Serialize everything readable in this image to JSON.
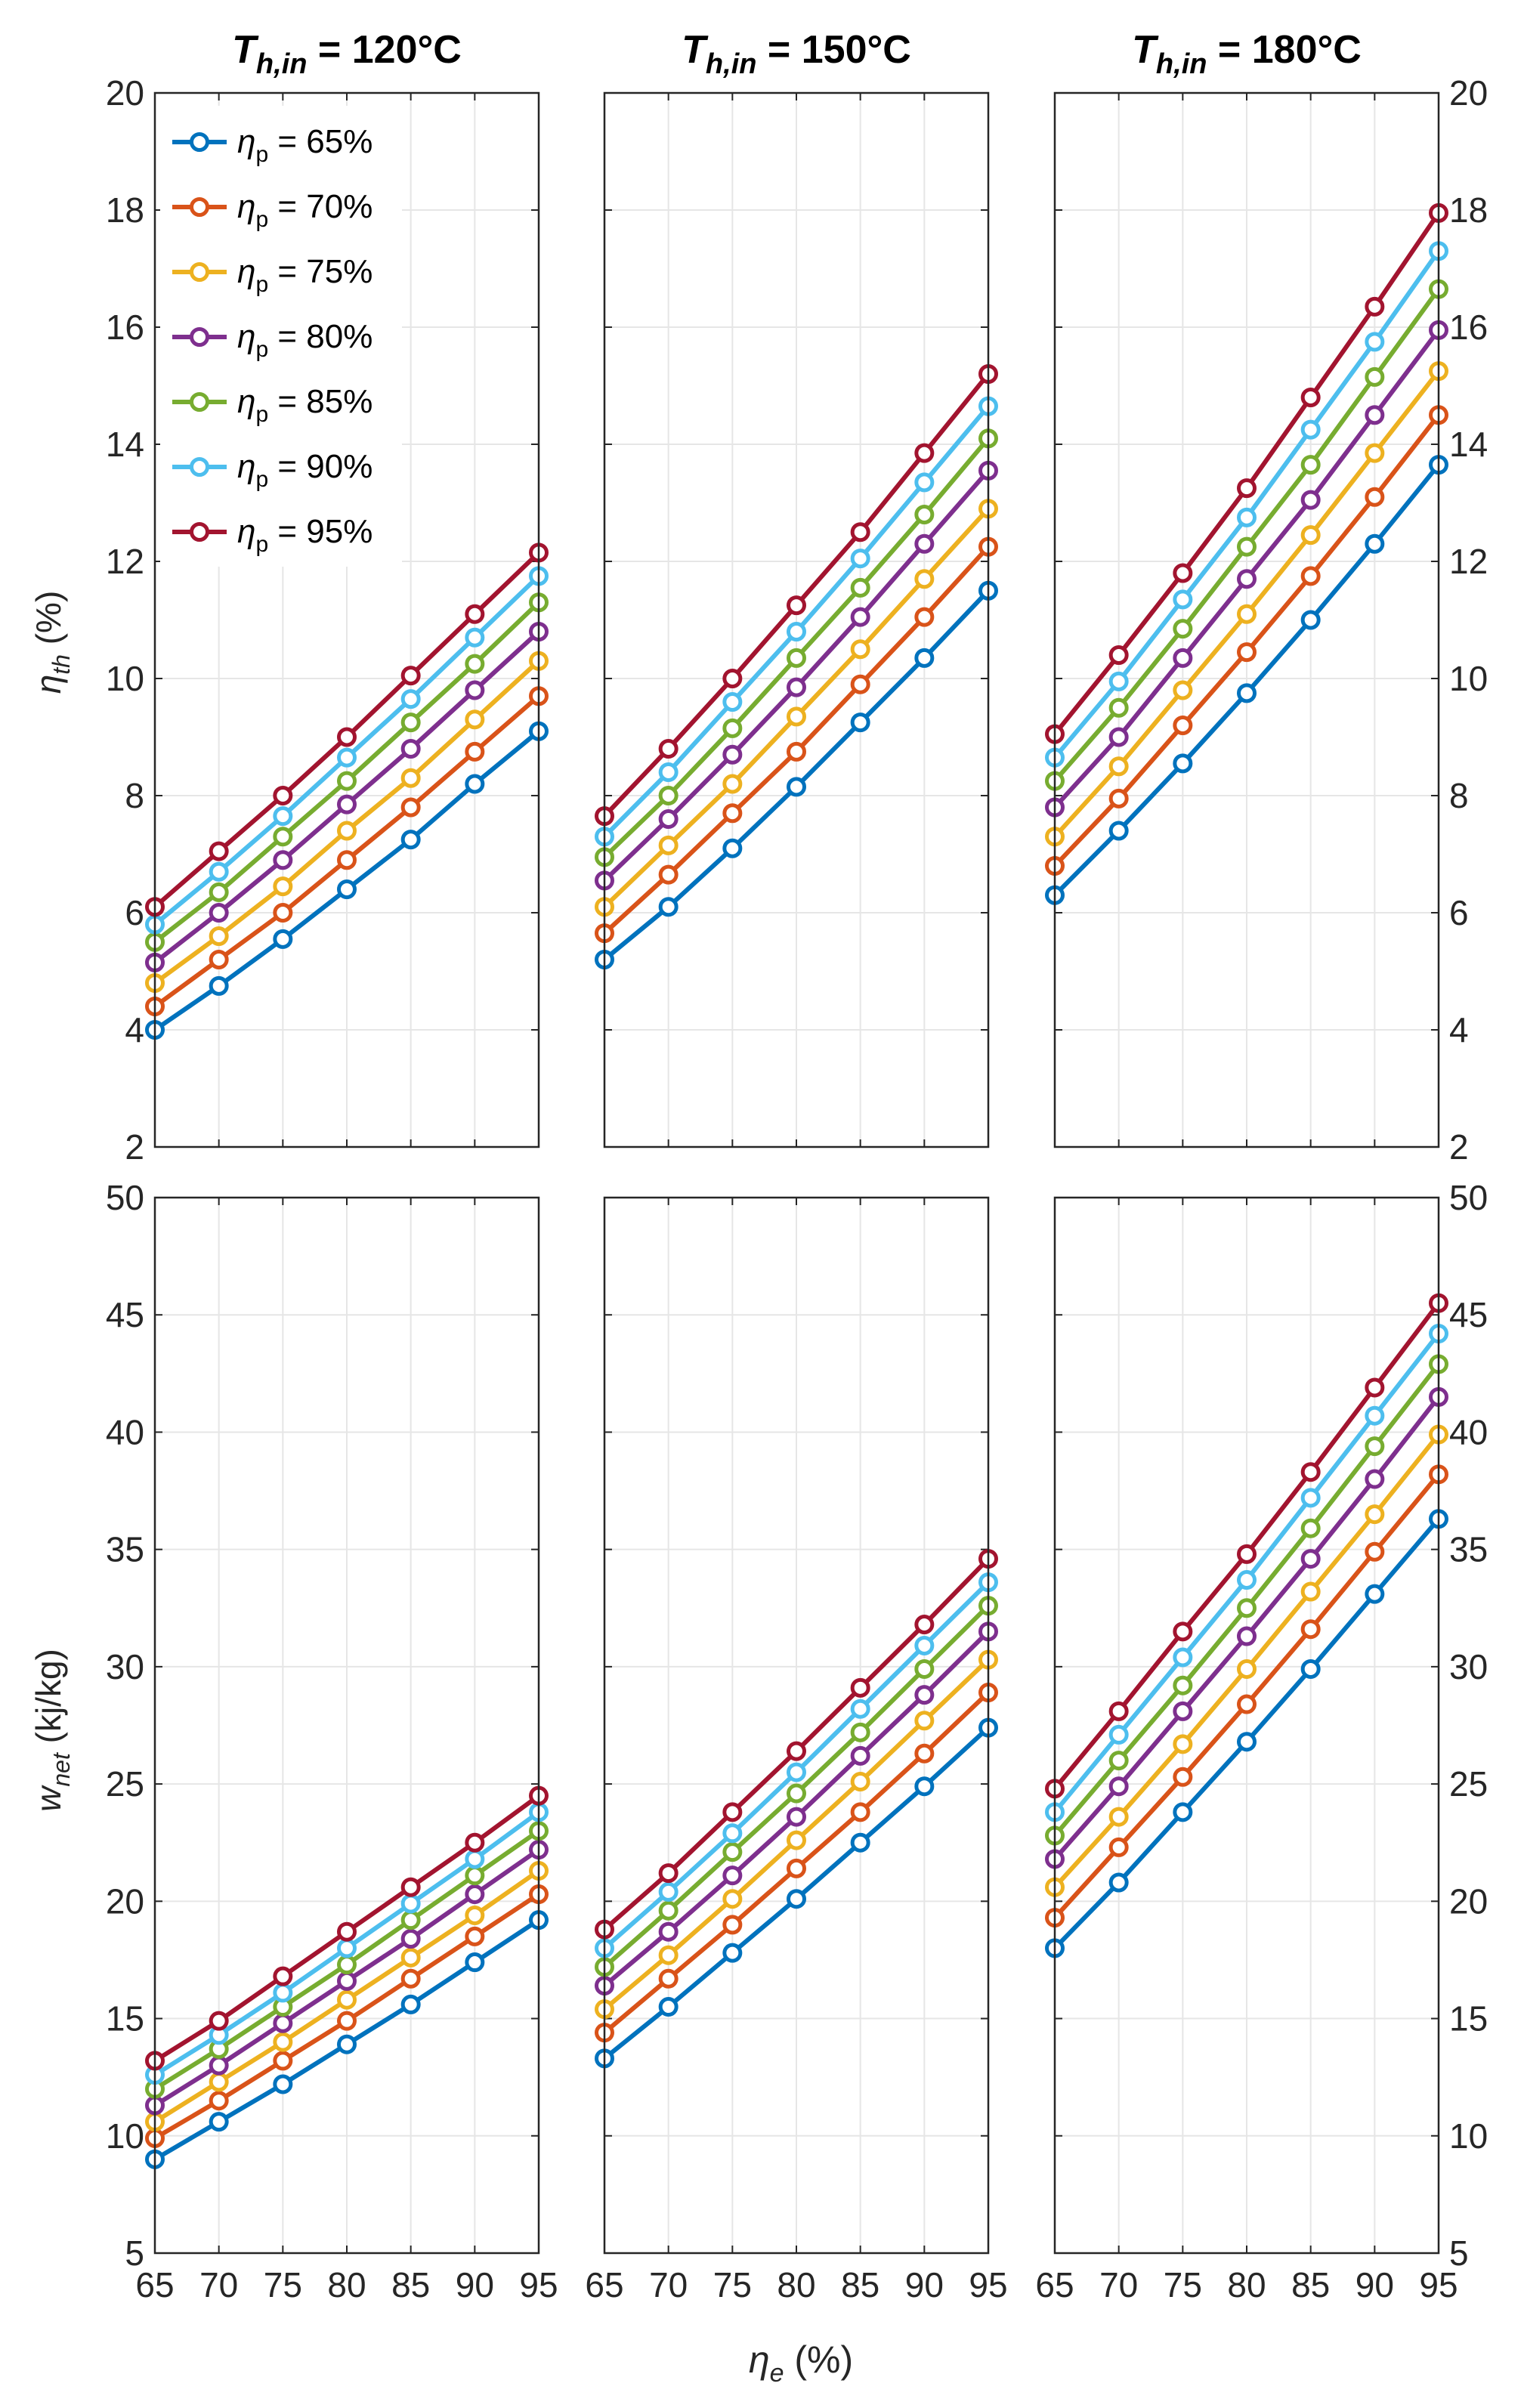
{
  "figure": {
    "xlabel_sym": "η",
    "xlabel_sub": "e",
    "xlabel_unit": " (%)",
    "ylabel_top_sym": "η",
    "ylabel_top_sub": "th",
    "ylabel_top_unit": " (%)",
    "ylabel_bottom_sym": "w",
    "ylabel_bottom_sub": "net",
    "ylabel_bottom_unit": " (kj/kg)"
  },
  "legend": {
    "prefix": "η",
    "sub": "p",
    "entries": [
      " = 65%",
      " = 70%",
      " = 75%",
      " = 80%",
      " = 85%",
      " = 90%",
      " = 95%"
    ]
  },
  "colors": [
    "#0072BD",
    "#D95319",
    "#EDB120",
    "#7E2F8E",
    "#77AC30",
    "#4DBEEE",
    "#A2142F"
  ],
  "chart_data": [
    {
      "type": "line",
      "panel": "top-left",
      "title_main": "T",
      "title_sub": "h,in",
      "title_rest": " = 120°C",
      "x": [
        65,
        70,
        75,
        80,
        85,
        90,
        95
      ],
      "ylim": [
        2,
        20
      ],
      "yticks": [
        2,
        4,
        6,
        8,
        10,
        12,
        14,
        16,
        18,
        20
      ],
      "xticks": [
        65,
        70,
        75,
        80,
        85,
        90,
        95
      ],
      "grid": true,
      "legend_position": "top-left",
      "series": [
        {
          "name": "ηp = 65%",
          "values": [
            4.0,
            4.75,
            5.55,
            6.4,
            7.25,
            8.2,
            9.1
          ]
        },
        {
          "name": "ηp = 70%",
          "values": [
            4.4,
            5.2,
            6.0,
            6.9,
            7.8,
            8.75,
            9.7
          ]
        },
        {
          "name": "ηp = 75%",
          "values": [
            4.8,
            5.6,
            6.45,
            7.4,
            8.3,
            9.3,
            10.3
          ]
        },
        {
          "name": "ηp = 80%",
          "values": [
            5.15,
            6.0,
            6.9,
            7.85,
            8.8,
            9.8,
            10.8
          ]
        },
        {
          "name": "ηp = 85%",
          "values": [
            5.5,
            6.35,
            7.3,
            8.25,
            9.25,
            10.25,
            11.3
          ]
        },
        {
          "name": "ηp = 90%",
          "values": [
            5.8,
            6.7,
            7.65,
            8.65,
            9.65,
            10.7,
            11.75
          ]
        },
        {
          "name": "ηp = 95%",
          "values": [
            6.1,
            7.05,
            8.0,
            9.0,
            10.05,
            11.1,
            12.15
          ]
        }
      ]
    },
    {
      "type": "line",
      "panel": "top-middle",
      "title_main": "T",
      "title_sub": "h,in",
      "title_rest": " = 150°C",
      "x": [
        65,
        70,
        75,
        80,
        85,
        90,
        95
      ],
      "ylim": [
        2,
        20
      ],
      "yticks": [
        2,
        4,
        6,
        8,
        10,
        12,
        14,
        16,
        18,
        20
      ],
      "xticks": [
        65,
        70,
        75,
        80,
        85,
        90,
        95
      ],
      "grid": true,
      "series": [
        {
          "name": "ηp = 65%",
          "values": [
            5.2,
            6.1,
            7.1,
            8.15,
            9.25,
            10.35,
            11.5
          ]
        },
        {
          "name": "ηp = 70%",
          "values": [
            5.65,
            6.65,
            7.7,
            8.75,
            9.9,
            11.05,
            12.25
          ]
        },
        {
          "name": "ηp = 75%",
          "values": [
            6.1,
            7.15,
            8.2,
            9.35,
            10.5,
            11.7,
            12.9
          ]
        },
        {
          "name": "ηp = 80%",
          "values": [
            6.55,
            7.6,
            8.7,
            9.85,
            11.05,
            12.3,
            13.55
          ]
        },
        {
          "name": "ηp = 85%",
          "values": [
            6.95,
            8.0,
            9.15,
            10.35,
            11.55,
            12.8,
            14.1
          ]
        },
        {
          "name": "ηp = 90%",
          "values": [
            7.3,
            8.4,
            9.6,
            10.8,
            12.05,
            13.35,
            14.65
          ]
        },
        {
          "name": "ηp = 95%",
          "values": [
            7.65,
            8.8,
            10.0,
            11.25,
            12.5,
            13.85,
            15.2
          ]
        }
      ]
    },
    {
      "type": "line",
      "panel": "top-right",
      "title_main": "T",
      "title_sub": "h,in",
      "title_rest": " = 180°C",
      "x": [
        65,
        70,
        75,
        80,
        85,
        90,
        95
      ],
      "ylim": [
        2,
        20
      ],
      "yticks": [
        2,
        4,
        6,
        8,
        10,
        12,
        14,
        16,
        18,
        20
      ],
      "xticks": [
        65,
        70,
        75,
        80,
        85,
        90,
        95
      ],
      "grid": true,
      "series": [
        {
          "name": "ηp = 65%",
          "values": [
            6.3,
            7.4,
            8.55,
            9.75,
            11.0,
            12.3,
            13.65
          ]
        },
        {
          "name": "ηp = 70%",
          "values": [
            6.8,
            7.95,
            9.2,
            10.45,
            11.75,
            13.1,
            14.5
          ]
        },
        {
          "name": "ηp = 75%",
          "values": [
            7.3,
            8.5,
            9.8,
            11.1,
            12.45,
            13.85,
            15.25
          ]
        },
        {
          "name": "ηp = 80%",
          "values": [
            7.8,
            9.0,
            10.35,
            11.7,
            13.05,
            14.5,
            15.95
          ]
        },
        {
          "name": "ηp = 85%",
          "values": [
            8.25,
            9.5,
            10.85,
            12.25,
            13.65,
            15.15,
            16.65
          ]
        },
        {
          "name": "ηp = 90%",
          "values": [
            8.65,
            9.95,
            11.35,
            12.75,
            14.25,
            15.75,
            17.3
          ]
        },
        {
          "name": "ηp = 95%",
          "values": [
            9.05,
            10.4,
            11.8,
            13.25,
            14.8,
            16.35,
            17.95
          ]
        }
      ]
    },
    {
      "type": "line",
      "panel": "bottom-left",
      "x": [
        65,
        70,
        75,
        80,
        85,
        90,
        95
      ],
      "ylim": [
        5,
        50
      ],
      "yticks": [
        5,
        10,
        15,
        20,
        25,
        30,
        35,
        40,
        45,
        50
      ],
      "xticks": [
        65,
        70,
        75,
        80,
        85,
        90,
        95
      ],
      "grid": true,
      "series": [
        {
          "name": "ηp = 65%",
          "values": [
            9.0,
            10.6,
            12.2,
            13.9,
            15.6,
            17.4,
            19.2
          ]
        },
        {
          "name": "ηp = 70%",
          "values": [
            9.9,
            11.5,
            13.2,
            14.9,
            16.7,
            18.5,
            20.3
          ]
        },
        {
          "name": "ηp = 75%",
          "values": [
            10.6,
            12.3,
            14.0,
            15.8,
            17.6,
            19.4,
            21.3
          ]
        },
        {
          "name": "ηp = 80%",
          "values": [
            11.3,
            13.0,
            14.8,
            16.6,
            18.4,
            20.3,
            22.2
          ]
        },
        {
          "name": "ηp = 85%",
          "values": [
            12.0,
            13.7,
            15.5,
            17.3,
            19.2,
            21.1,
            23.0
          ]
        },
        {
          "name": "ηp = 90%",
          "values": [
            12.6,
            14.3,
            16.1,
            18.0,
            19.9,
            21.8,
            23.8
          ]
        },
        {
          "name": "ηp = 95%",
          "values": [
            13.2,
            14.9,
            16.8,
            18.7,
            20.6,
            22.5,
            24.5
          ]
        }
      ]
    },
    {
      "type": "line",
      "panel": "bottom-middle",
      "x": [
        65,
        70,
        75,
        80,
        85,
        90,
        95
      ],
      "ylim": [
        5,
        50
      ],
      "yticks": [
        5,
        10,
        15,
        20,
        25,
        30,
        35,
        40,
        45,
        50
      ],
      "xticks": [
        65,
        70,
        75,
        80,
        85,
        90,
        95
      ],
      "grid": true,
      "series": [
        {
          "name": "ηp = 65%",
          "values": [
            13.3,
            15.5,
            17.8,
            20.1,
            22.5,
            24.9,
            27.4
          ]
        },
        {
          "name": "ηp = 70%",
          "values": [
            14.4,
            16.7,
            19.0,
            21.4,
            23.8,
            26.3,
            28.9
          ]
        },
        {
          "name": "ηp = 75%",
          "values": [
            15.4,
            17.7,
            20.1,
            22.6,
            25.1,
            27.7,
            30.3
          ]
        },
        {
          "name": "ηp = 80%",
          "values": [
            16.4,
            18.7,
            21.1,
            23.6,
            26.2,
            28.8,
            31.5
          ]
        },
        {
          "name": "ηp = 85%",
          "values": [
            17.2,
            19.6,
            22.1,
            24.6,
            27.2,
            29.9,
            32.6
          ]
        },
        {
          "name": "ηp = 90%",
          "values": [
            18.0,
            20.4,
            22.9,
            25.5,
            28.2,
            30.9,
            33.6
          ]
        },
        {
          "name": "ηp = 95%",
          "values": [
            18.8,
            21.2,
            23.8,
            26.4,
            29.1,
            31.8,
            34.6
          ]
        }
      ]
    },
    {
      "type": "line",
      "panel": "bottom-right",
      "x": [
        65,
        70,
        75,
        80,
        85,
        90,
        95
      ],
      "ylim": [
        5,
        50
      ],
      "yticks": [
        5,
        10,
        15,
        20,
        25,
        30,
        35,
        40,
        45,
        50
      ],
      "xticks": [
        65,
        70,
        75,
        80,
        85,
        90,
        95
      ],
      "grid": true,
      "series": [
        {
          "name": "ηp = 65%",
          "values": [
            18.0,
            20.8,
            23.8,
            26.8,
            29.9,
            33.1,
            36.3
          ]
        },
        {
          "name": "ηp = 70%",
          "values": [
            19.3,
            22.3,
            25.3,
            28.4,
            31.6,
            34.9,
            38.2
          ]
        },
        {
          "name": "ηp = 75%",
          "values": [
            20.6,
            23.6,
            26.7,
            29.9,
            33.2,
            36.5,
            39.9
          ]
        },
        {
          "name": "ηp = 80%",
          "values": [
            21.8,
            24.9,
            28.1,
            31.3,
            34.6,
            38.0,
            41.5
          ]
        },
        {
          "name": "ηp = 85%",
          "values": [
            22.8,
            26.0,
            29.2,
            32.5,
            35.9,
            39.4,
            42.9
          ]
        },
        {
          "name": "ηp = 90%",
          "values": [
            23.8,
            27.1,
            30.4,
            33.7,
            37.2,
            40.7,
            44.2
          ]
        },
        {
          "name": "ηp = 95%",
          "values": [
            24.8,
            28.1,
            31.5,
            34.8,
            38.3,
            41.9,
            45.5
          ]
        }
      ]
    }
  ]
}
